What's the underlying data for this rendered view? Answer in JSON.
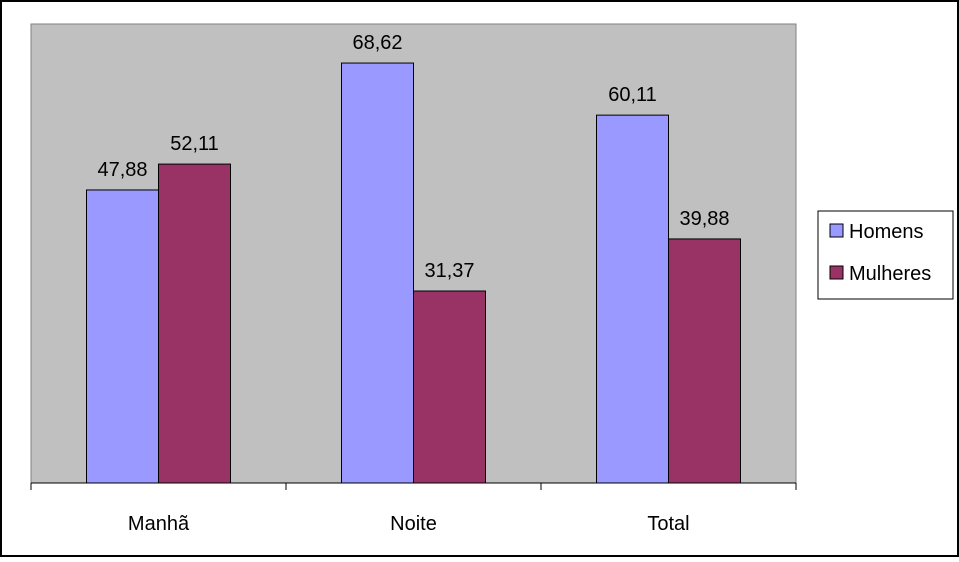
{
  "chart_data": {
    "type": "bar",
    "title": "",
    "xlabel": "",
    "ylabel": "",
    "ylim": [
      0,
      75
    ],
    "grid": false,
    "legend_position": "right",
    "categories": [
      "Manhã",
      "Noite",
      "Total"
    ],
    "series": [
      {
        "name": "Homens",
        "values": [
          47.88,
          68.62,
          60.11
        ],
        "labels": [
          "47,88",
          "68,62",
          "60,11"
        ],
        "color": "#9999ff"
      },
      {
        "name": "Mulheres",
        "values": [
          52.11,
          31.37,
          39.88
        ],
        "labels": [
          "52,11",
          "31,37",
          "39,88"
        ],
        "color": "#993366"
      }
    ],
    "plot_background": "#c0c0c0"
  }
}
